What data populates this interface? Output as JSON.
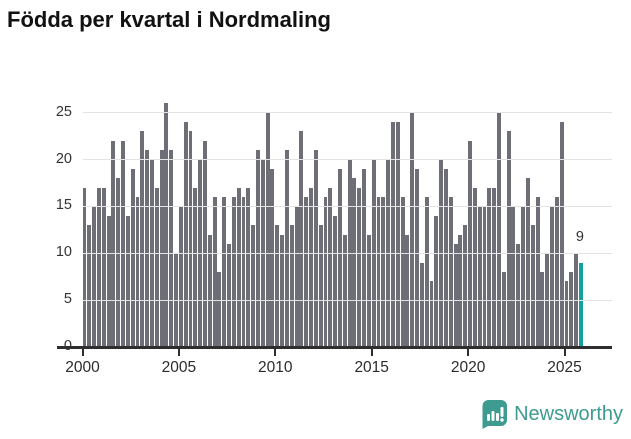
{
  "title": "Födda per kvartal i Nordmaling",
  "chart_data": {
    "type": "bar",
    "title": "Födda per kvartal i Nordmaling",
    "xlabel": "",
    "ylabel": "",
    "frequency": "quarterly",
    "x_first_quarter": "2000-Q1",
    "x_last_quarter": "2025-Q4",
    "ylim": [
      0,
      27
    ],
    "grid": "horizontal",
    "y_tick_labels": [
      "0",
      "5",
      "10",
      "15",
      "20",
      "25"
    ],
    "y_ticks": [
      0,
      5,
      10,
      15,
      20,
      25
    ],
    "x_tick_labels": [
      "2000",
      "2005",
      "2010",
      "2015",
      "2020",
      "2025"
    ],
    "x_tick_years": [
      2000,
      2005,
      2010,
      2015,
      2020,
      2025
    ],
    "values": [
      17,
      13,
      15,
      17,
      17,
      14,
      22,
      18,
      22,
      14,
      19,
      16,
      23,
      21,
      20,
      17,
      21,
      26,
      21,
      10,
      15,
      24,
      23,
      17,
      20,
      22,
      12,
      16,
      8,
      16,
      11,
      16,
      17,
      16,
      17,
      13,
      21,
      20,
      25,
      19,
      13,
      12,
      21,
      13,
      15,
      23,
      16,
      17,
      21,
      13,
      16,
      17,
      14,
      19,
      12,
      20,
      18,
      17,
      19,
      12,
      20,
      16,
      16,
      20,
      24,
      24,
      16,
      12,
      25,
      19,
      9,
      16,
      7,
      14,
      20,
      19,
      16,
      11,
      12,
      13,
      22,
      17,
      15,
      15,
      17,
      17,
      25,
      8,
      23,
      15,
      11,
      15,
      18,
      13,
      16,
      8,
      10,
      15,
      16,
      24,
      7,
      8,
      10,
      9
    ],
    "highlight_index": 103,
    "highlight_value_label": "9",
    "colors": {
      "bar": "#6e6e76",
      "highlight_bar": "#14a09e",
      "grid": "#e3e3e3",
      "axis": "#2e2e2e",
      "text": "#333333"
    }
  },
  "annotation": {
    "last_value_label": "9"
  },
  "footer": {
    "brand": "Newsworthy",
    "logo_color": "#3d9b8f"
  }
}
